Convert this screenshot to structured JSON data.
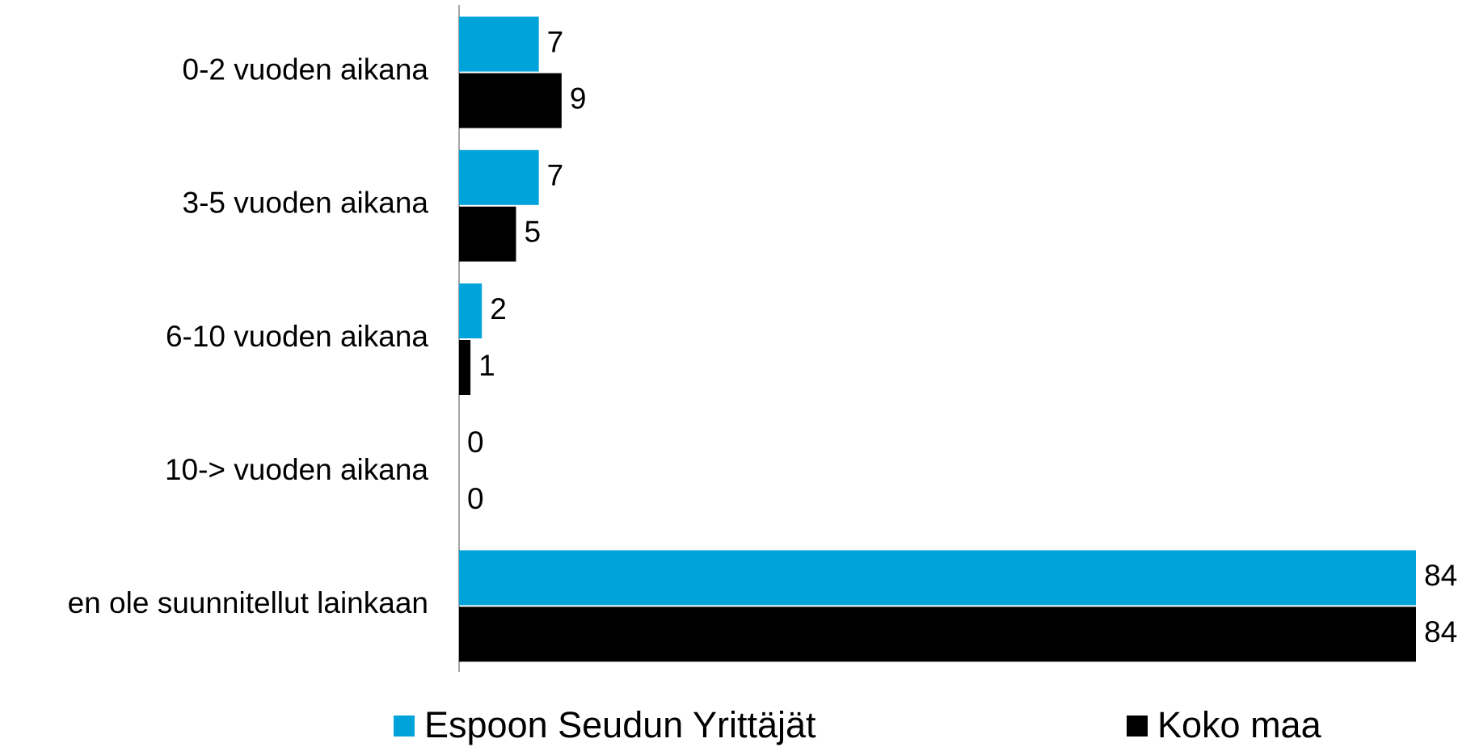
{
  "chart_data": {
    "type": "bar",
    "orientation": "horizontal",
    "categories": [
      "0-2 vuoden aikana",
      "3-5 vuoden aikana",
      "6-10 vuoden aikana",
      "10-> vuoden aikana",
      "en ole suunnitellut lainkaan"
    ],
    "series": [
      {
        "name": "Espoon Seudun Yrittäjät",
        "color": "#00a3da",
        "values": [
          7,
          7,
          2,
          0,
          84
        ]
      },
      {
        "name": "Koko maa",
        "color": "#000000",
        "values": [
          9,
          5,
          1,
          0,
          84
        ]
      }
    ],
    "xlim": [
      0,
      84
    ],
    "grid": false,
    "legend": "bottom"
  }
}
